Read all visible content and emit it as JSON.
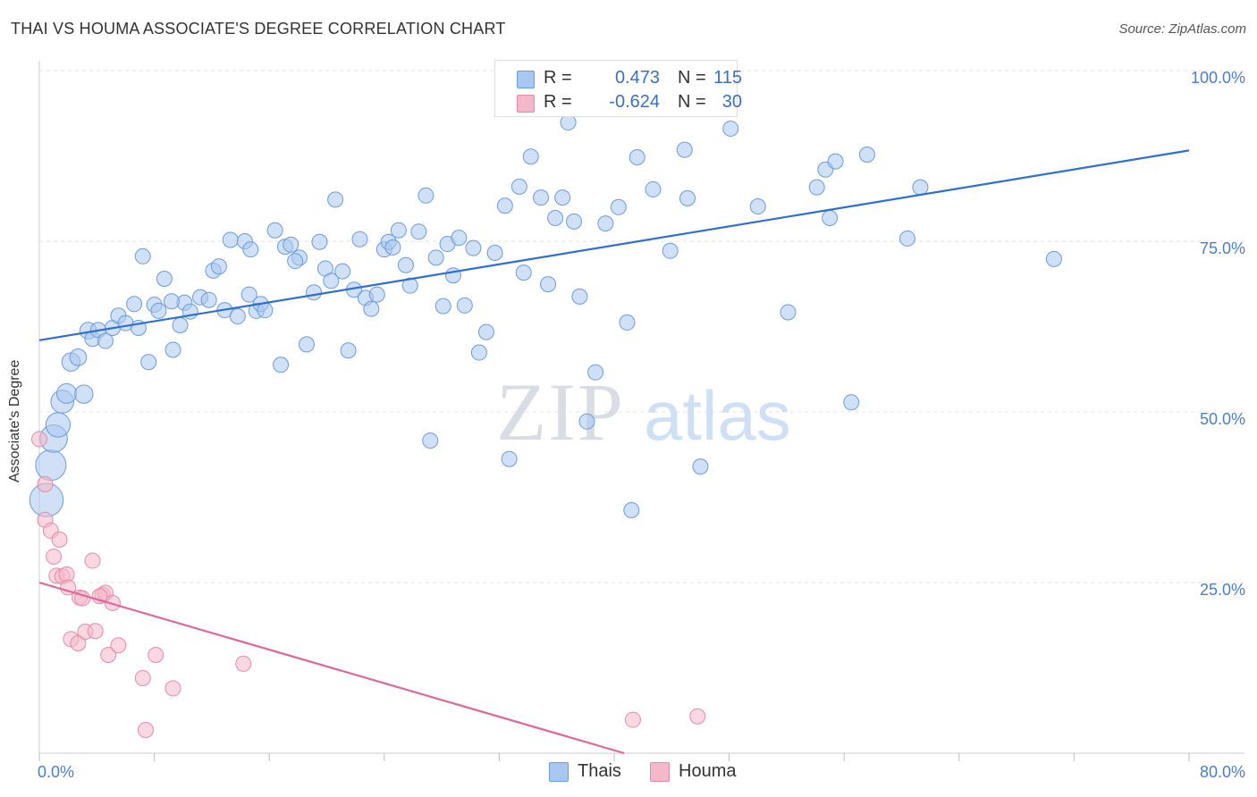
{
  "header": {
    "title": "THAI VS HOUMA ASSOCIATE'S DEGREE CORRELATION CHART",
    "source": "Source: ZipAtlas.com"
  },
  "watermark": {
    "zip": "ZIP",
    "atlas": "atlas"
  },
  "legend": {
    "rows": [
      {
        "r_label": "R =",
        "r_value": "0.473",
        "n_label": "N =",
        "n_value": "115",
        "color": "#a9c8f0"
      },
      {
        "r_label": "R =",
        "r_value": "-0.624",
        "n_label": "N =",
        "n_value": "30",
        "color": "#f5b8cb"
      }
    ],
    "bottom": [
      {
        "label": "Thais",
        "color": "#a9c8f0"
      },
      {
        "label": "Houma",
        "color": "#f5b8cb"
      }
    ]
  },
  "colors": {
    "thais_fill": "#a9c8f0",
    "thais_stroke": "#6a9bdc",
    "thais_line": "#2f6fd0",
    "houma_fill": "#f5b8cb",
    "houma_stroke": "#e58aa8",
    "houma_line": "#e0679a",
    "grid": "#e3e3e3",
    "axis_label": "#4a7fc8"
  },
  "chart_data": {
    "type": "scatter",
    "title": "THAI VS HOUMA ASSOCIATE'S DEGREE CORRELATION CHART",
    "xlabel": "",
    "ylabel": "Associate's Degree",
    "xlim": [
      0,
      80
    ],
    "ylim": [
      0,
      100
    ],
    "x_tick_labels": [
      "0.0%",
      "80.0%"
    ],
    "y_ticks": [
      25,
      50,
      75,
      100
    ],
    "y_tick_labels": [
      "25.0%",
      "50.0%",
      "75.0%",
      "100.0%"
    ],
    "grid": true,
    "legend_position": "top-center",
    "series": [
      {
        "name": "Thais",
        "r": 0.473,
        "n": 115,
        "trend": {
          "x": [
            0,
            80
          ],
          "y": [
            60.5,
            88.3
          ]
        },
        "points": [
          {
            "x": 0.5,
            "y": 37.1,
            "s": 2.2
          },
          {
            "x": 0.8,
            "y": 42.2,
            "s": 2.0
          },
          {
            "x": 1.0,
            "y": 46.1,
            "s": 1.8
          },
          {
            "x": 1.3,
            "y": 48.1,
            "s": 1.6
          },
          {
            "x": 1.6,
            "y": 51.5,
            "s": 1.5
          },
          {
            "x": 1.9,
            "y": 52.7,
            "s": 1.3
          },
          {
            "x": 2.2,
            "y": 57.3,
            "s": 1.2
          },
          {
            "x": 2.7,
            "y": 58.0,
            "s": 1.1
          },
          {
            "x": 3.1,
            "y": 52.6,
            "s": 1.2
          },
          {
            "x": 3.4,
            "y": 61.9,
            "s": 1.1
          },
          {
            "x": 3.7,
            "y": 60.7,
            "s": 1.0
          },
          {
            "x": 4.1,
            "y": 62.0,
            "s": 1.0
          },
          {
            "x": 4.6,
            "y": 60.4,
            "s": 1.0
          },
          {
            "x": 5.1,
            "y": 62.3,
            "s": 1.0
          },
          {
            "x": 5.5,
            "y": 64.1,
            "s": 1.0
          },
          {
            "x": 6.0,
            "y": 63.0,
            "s": 1.0
          },
          {
            "x": 6.6,
            "y": 65.8,
            "s": 1.0
          },
          {
            "x": 6.9,
            "y": 62.3,
            "s": 1.0
          },
          {
            "x": 7.2,
            "y": 72.8,
            "s": 1.0
          },
          {
            "x": 7.6,
            "y": 57.3,
            "s": 1.0
          },
          {
            "x": 8.0,
            "y": 65.7,
            "s": 1.0
          },
          {
            "x": 8.3,
            "y": 64.8,
            "s": 1.0
          },
          {
            "x": 8.7,
            "y": 69.5,
            "s": 1.0
          },
          {
            "x": 9.3,
            "y": 59.1,
            "s": 1.0
          },
          {
            "x": 9.8,
            "y": 62.7,
            "s": 1.0
          },
          {
            "x": 10.1,
            "y": 66.0,
            "s": 1.0
          },
          {
            "x": 10.5,
            "y": 64.7,
            "s": 1.0
          },
          {
            "x": 11.2,
            "y": 66.8,
            "s": 1.0
          },
          {
            "x": 11.8,
            "y": 66.4,
            "s": 1.0
          },
          {
            "x": 12.1,
            "y": 70.7,
            "s": 1.0
          },
          {
            "x": 12.5,
            "y": 71.3,
            "s": 1.0
          },
          {
            "x": 12.9,
            "y": 64.9,
            "s": 1.0
          },
          {
            "x": 13.3,
            "y": 75.2,
            "s": 1.0
          },
          {
            "x": 13.8,
            "y": 64.0,
            "s": 1.0
          },
          {
            "x": 14.3,
            "y": 75.0,
            "s": 1.0
          },
          {
            "x": 14.7,
            "y": 73.8,
            "s": 1.0
          },
          {
            "x": 15.1,
            "y": 64.8,
            "s": 1.0
          },
          {
            "x": 15.4,
            "y": 65.8,
            "s": 1.0
          },
          {
            "x": 15.7,
            "y": 64.9,
            "s": 1.0
          },
          {
            "x": 16.4,
            "y": 76.6,
            "s": 1.0
          },
          {
            "x": 16.8,
            "y": 56.9,
            "s": 1.0
          },
          {
            "x": 17.1,
            "y": 74.2,
            "s": 1.0
          },
          {
            "x": 17.5,
            "y": 74.5,
            "s": 1.0
          },
          {
            "x": 18.1,
            "y": 72.6,
            "s": 1.0
          },
          {
            "x": 18.6,
            "y": 59.9,
            "s": 1.0
          },
          {
            "x": 19.1,
            "y": 67.5,
            "s": 1.0
          },
          {
            "x": 19.5,
            "y": 74.9,
            "s": 1.0
          },
          {
            "x": 19.9,
            "y": 71.0,
            "s": 1.0
          },
          {
            "x": 20.3,
            "y": 69.2,
            "s": 1.0
          },
          {
            "x": 20.6,
            "y": 81.1,
            "s": 1.0
          },
          {
            "x": 21.1,
            "y": 70.6,
            "s": 1.0
          },
          {
            "x": 21.5,
            "y": 59.0,
            "s": 1.0
          },
          {
            "x": 21.9,
            "y": 67.9,
            "s": 1.0
          },
          {
            "x": 22.3,
            "y": 75.3,
            "s": 1.0
          },
          {
            "x": 22.7,
            "y": 66.7,
            "s": 1.0
          },
          {
            "x": 23.1,
            "y": 65.1,
            "s": 1.0
          },
          {
            "x": 23.5,
            "y": 67.2,
            "s": 1.0
          },
          {
            "x": 24.0,
            "y": 73.8,
            "s": 1.0
          },
          {
            "x": 24.3,
            "y": 74.9,
            "s": 1.0
          },
          {
            "x": 24.6,
            "y": 74.1,
            "s": 1.0
          },
          {
            "x": 25.0,
            "y": 76.6,
            "s": 1.0
          },
          {
            "x": 25.5,
            "y": 71.5,
            "s": 1.0
          },
          {
            "x": 25.8,
            "y": 68.5,
            "s": 1.0
          },
          {
            "x": 26.4,
            "y": 76.4,
            "s": 1.0
          },
          {
            "x": 26.9,
            "y": 81.7,
            "s": 1.0
          },
          {
            "x": 27.2,
            "y": 45.8,
            "s": 1.0
          },
          {
            "x": 27.6,
            "y": 72.6,
            "s": 1.0
          },
          {
            "x": 28.1,
            "y": 65.5,
            "s": 1.0
          },
          {
            "x": 28.4,
            "y": 74.6,
            "s": 1.0
          },
          {
            "x": 28.8,
            "y": 70.0,
            "s": 1.0
          },
          {
            "x": 29.2,
            "y": 75.5,
            "s": 1.0
          },
          {
            "x": 29.6,
            "y": 65.6,
            "s": 1.0
          },
          {
            "x": 30.2,
            "y": 74.0,
            "s": 1.0
          },
          {
            "x": 30.6,
            "y": 58.7,
            "s": 1.0
          },
          {
            "x": 31.1,
            "y": 61.7,
            "s": 1.0
          },
          {
            "x": 31.7,
            "y": 73.3,
            "s": 1.0
          },
          {
            "x": 32.4,
            "y": 80.2,
            "s": 1.0
          },
          {
            "x": 32.7,
            "y": 43.1,
            "s": 1.0
          },
          {
            "x": 33.4,
            "y": 83.0,
            "s": 1.0
          },
          {
            "x": 33.7,
            "y": 70.4,
            "s": 1.0
          },
          {
            "x": 34.2,
            "y": 87.4,
            "s": 1.0
          },
          {
            "x": 34.9,
            "y": 81.4,
            "s": 1.0
          },
          {
            "x": 35.4,
            "y": 68.7,
            "s": 1.0
          },
          {
            "x": 35.9,
            "y": 78.4,
            "s": 1.0
          },
          {
            "x": 36.4,
            "y": 81.4,
            "s": 1.0
          },
          {
            "x": 36.8,
            "y": 92.4,
            "s": 1.0
          },
          {
            "x": 37.2,
            "y": 77.9,
            "s": 1.0
          },
          {
            "x": 37.6,
            "y": 66.9,
            "s": 1.0
          },
          {
            "x": 38.1,
            "y": 48.6,
            "s": 1.0
          },
          {
            "x": 38.7,
            "y": 55.8,
            "s": 1.0
          },
          {
            "x": 39.4,
            "y": 77.6,
            "s": 1.0
          },
          {
            "x": 40.3,
            "y": 80.0,
            "s": 1.0
          },
          {
            "x": 40.9,
            "y": 63.1,
            "s": 1.0
          },
          {
            "x": 41.2,
            "y": 35.6,
            "s": 1.0
          },
          {
            "x": 41.6,
            "y": 87.3,
            "s": 1.0
          },
          {
            "x": 42.7,
            "y": 82.6,
            "s": 1.0
          },
          {
            "x": 43.9,
            "y": 73.6,
            "s": 1.0
          },
          {
            "x": 44.9,
            "y": 88.4,
            "s": 1.0
          },
          {
            "x": 45.1,
            "y": 81.3,
            "s": 1.0
          },
          {
            "x": 46.0,
            "y": 42.0,
            "s": 1.0
          },
          {
            "x": 48.1,
            "y": 91.5,
            "s": 1.0
          },
          {
            "x": 50.0,
            "y": 80.1,
            "s": 1.0
          },
          {
            "x": 52.1,
            "y": 64.6,
            "s": 1.0
          },
          {
            "x": 54.1,
            "y": 82.9,
            "s": 1.0
          },
          {
            "x": 54.7,
            "y": 85.5,
            "s": 1.0
          },
          {
            "x": 55.0,
            "y": 78.4,
            "s": 1.0
          },
          {
            "x": 55.4,
            "y": 86.7,
            "s": 1.0
          },
          {
            "x": 56.5,
            "y": 51.4,
            "s": 1.0
          },
          {
            "x": 57.6,
            "y": 87.7,
            "s": 1.0
          },
          {
            "x": 60.4,
            "y": 75.4,
            "s": 1.0
          },
          {
            "x": 61.3,
            "y": 82.9,
            "s": 1.0
          },
          {
            "x": 70.6,
            "y": 72.4,
            "s": 1.0
          },
          {
            "x": 17.8,
            "y": 72.1,
            "s": 1.0
          },
          {
            "x": 14.6,
            "y": 67.2,
            "s": 1.0
          },
          {
            "x": 9.2,
            "y": 66.2,
            "s": 1.0
          }
        ]
      },
      {
        "name": "Houma",
        "r": -0.624,
        "n": 30,
        "trend": {
          "x": [
            0,
            40.7
          ],
          "y": [
            25.0,
            0
          ]
        },
        "points": [
          {
            "x": 0.0,
            "y": 46.0,
            "s": 1.0
          },
          {
            "x": 0.4,
            "y": 39.4,
            "s": 1.0
          },
          {
            "x": 0.4,
            "y": 34.2,
            "s": 1.0
          },
          {
            "x": 0.8,
            "y": 32.6,
            "s": 1.0
          },
          {
            "x": 1.0,
            "y": 28.8,
            "s": 1.0
          },
          {
            "x": 1.4,
            "y": 31.3,
            "s": 1.0
          },
          {
            "x": 1.2,
            "y": 26.0,
            "s": 1.0
          },
          {
            "x": 1.6,
            "y": 25.9,
            "s": 1.0
          },
          {
            "x": 1.9,
            "y": 26.2,
            "s": 1.0
          },
          {
            "x": 2.0,
            "y": 24.3,
            "s": 1.0
          },
          {
            "x": 2.2,
            "y": 16.7,
            "s": 1.0
          },
          {
            "x": 2.7,
            "y": 16.1,
            "s": 1.0
          },
          {
            "x": 2.8,
            "y": 22.8,
            "s": 1.0
          },
          {
            "x": 3.0,
            "y": 22.7,
            "s": 1.0
          },
          {
            "x": 3.2,
            "y": 17.8,
            "s": 1.0
          },
          {
            "x": 3.7,
            "y": 28.2,
            "s": 1.0
          },
          {
            "x": 3.9,
            "y": 17.9,
            "s": 1.0
          },
          {
            "x": 4.4,
            "y": 23.2,
            "s": 1.0
          },
          {
            "x": 4.6,
            "y": 23.5,
            "s": 1.0
          },
          {
            "x": 4.8,
            "y": 14.4,
            "s": 1.0
          },
          {
            "x": 5.1,
            "y": 22.0,
            "s": 1.0
          },
          {
            "x": 5.5,
            "y": 15.8,
            "s": 1.0
          },
          {
            "x": 7.2,
            "y": 11.0,
            "s": 1.0
          },
          {
            "x": 8.1,
            "y": 14.4,
            "s": 1.0
          },
          {
            "x": 7.4,
            "y": 3.4,
            "s": 1.0
          },
          {
            "x": 9.3,
            "y": 9.5,
            "s": 1.0
          },
          {
            "x": 14.2,
            "y": 13.1,
            "s": 1.0
          },
          {
            "x": 41.3,
            "y": 4.9,
            "s": 1.0
          },
          {
            "x": 45.8,
            "y": 5.4,
            "s": 1.0
          },
          {
            "x": 4.2,
            "y": 23.0,
            "s": 1.0
          }
        ]
      }
    ]
  }
}
